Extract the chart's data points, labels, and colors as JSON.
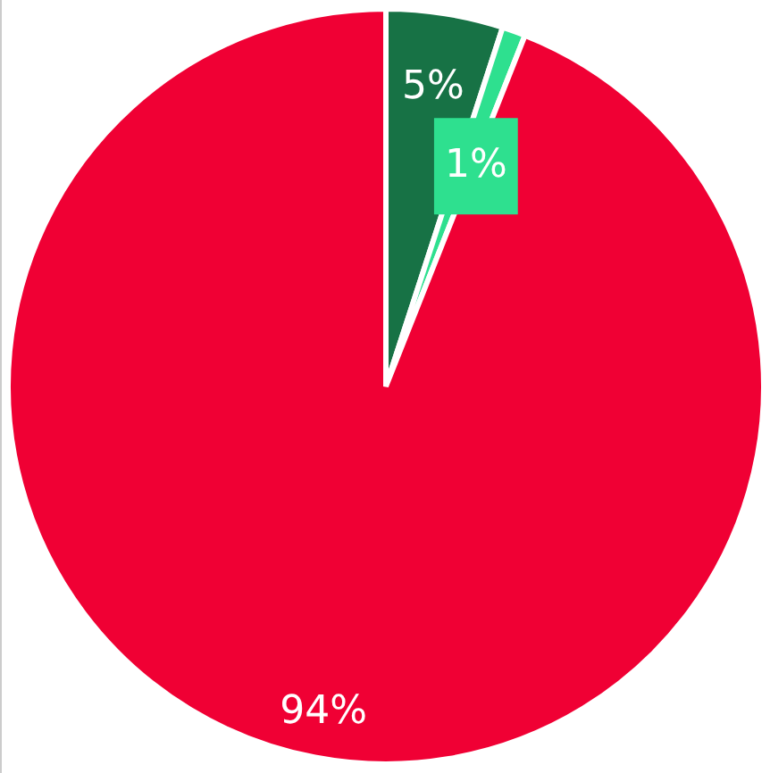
{
  "chart_data": {
    "type": "pie",
    "categories": [
      null,
      null,
      null
    ],
    "values": [
      5,
      1,
      94
    ],
    "colors": [
      "#177245",
      "#2ee08f",
      "#f00034"
    ],
    "value_labels": [
      "5%",
      "1%",
      "94%"
    ],
    "legend": false
  }
}
